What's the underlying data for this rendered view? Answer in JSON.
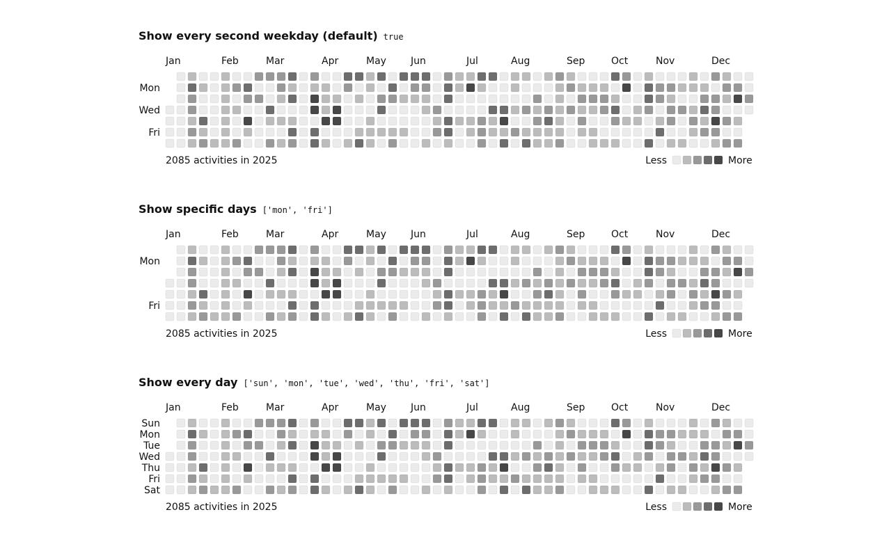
{
  "calendars": [
    {
      "title": "Show every second weekday (default)",
      "code": "true",
      "weekday_labels": [
        "",
        "Mon",
        "",
        "Wed",
        "",
        "Fri",
        ""
      ]
    },
    {
      "title": "Show specific days",
      "code": "['mon', 'fri']",
      "weekday_labels": [
        "",
        "Mon",
        "",
        "",
        "",
        "Fri",
        ""
      ]
    },
    {
      "title": "Show every day",
      "code": "['sun', 'mon', 'tue', 'wed', 'thu', 'fri', 'sat']",
      "weekday_labels": [
        "Sun",
        "Mon",
        "Tue",
        "Wed",
        "Thu",
        "Fri",
        "Sat"
      ]
    }
  ],
  "months": [
    "Jan",
    "Feb",
    "Mar",
    "Apr",
    "May",
    "Jun",
    "Jul",
    "Aug",
    "Sep",
    "Oct",
    "Nov",
    "Dec"
  ],
  "summary": "2085 activities in 2025",
  "legend": {
    "less": "Less",
    "more": "More"
  },
  "level_colors": [
    "#ebebeb",
    "#bcbcbc",
    "#999999",
    "#6d6d6d",
    "#474747"
  ],
  "activity_levels": [
    [
      0,
      0,
      1,
      0,
      0,
      1,
      0,
      0,
      2,
      2,
      2,
      3,
      0,
      2,
      0,
      0,
      3,
      3,
      1,
      3,
      0,
      3,
      3,
      3,
      0,
      2,
      1,
      1,
      3,
      3,
      0,
      1,
      1,
      0,
      1,
      2,
      1,
      0,
      0,
      0,
      3,
      2,
      0,
      1,
      0,
      0,
      0,
      1,
      0,
      2,
      1
    ],
    [
      0,
      0,
      3,
      1,
      0,
      1,
      2,
      3,
      0,
      0,
      2,
      1,
      0,
      1,
      1,
      0,
      2,
      0,
      1,
      0,
      3,
      0,
      2,
      2,
      0,
      3,
      1,
      4,
      1,
      0,
      0,
      1,
      0,
      0,
      0,
      1,
      2,
      1,
      1,
      1,
      0,
      4,
      0,
      3,
      2,
      2,
      1,
      1,
      1,
      0,
      2,
      2
    ],
    [
      0,
      0,
      2,
      0,
      0,
      1,
      0,
      2,
      2,
      0,
      1,
      3,
      0,
      4,
      1,
      1,
      0,
      1,
      0,
      2,
      2,
      1,
      1,
      1,
      0,
      3,
      0,
      0,
      0,
      0,
      0,
      0,
      0,
      2,
      0,
      1,
      0,
      2,
      2,
      2,
      1,
      0,
      0,
      3,
      2,
      1,
      0,
      0,
      2,
      2,
      1,
      4,
      2
    ],
    [
      0,
      0,
      2,
      0,
      0,
      1,
      1,
      0,
      0,
      3,
      0,
      0,
      0,
      4,
      1,
      4,
      0,
      0,
      0,
      3,
      0,
      0,
      0,
      1,
      2,
      0,
      0,
      0,
      0,
      3,
      3,
      1,
      2,
      1,
      2,
      1,
      2,
      1,
      1,
      2,
      3,
      0,
      1,
      2,
      0,
      2,
      2,
      1,
      3,
      2,
      0,
      0,
      0
    ],
    [
      0,
      0,
      1,
      3,
      0,
      1,
      0,
      4,
      0,
      1,
      1,
      1,
      0,
      0,
      4,
      4,
      0,
      0,
      1,
      0,
      0,
      0,
      0,
      0,
      1,
      3,
      1,
      1,
      2,
      1,
      4,
      0,
      0,
      2,
      3,
      1,
      0,
      2,
      0,
      0,
      2,
      1,
      1,
      0,
      1,
      2,
      0,
      2,
      1,
      4,
      2,
      1,
      1
    ],
    [
      0,
      0,
      2,
      1,
      0,
      1,
      0,
      1,
      0,
      0,
      0,
      3,
      0,
      3,
      0,
      0,
      0,
      1,
      1,
      1,
      1,
      1,
      0,
      0,
      2,
      3,
      0,
      1,
      2,
      1,
      1,
      2,
      1,
      1,
      1,
      1,
      0,
      1,
      1,
      0,
      0,
      0,
      0,
      0,
      3,
      0,
      0,
      1,
      2,
      2,
      0,
      0,
      1
    ],
    [
      0,
      0,
      1,
      2,
      1,
      1,
      2,
      0,
      0,
      2,
      1,
      2,
      0,
      3,
      1,
      0,
      1,
      3,
      1,
      0,
      2,
      0,
      0,
      1,
      0,
      1,
      0,
      0,
      2,
      0,
      3,
      0,
      3,
      1,
      1,
      2,
      0,
      0,
      1,
      1,
      1,
      0,
      0,
      3,
      0,
      1,
      1,
      0,
      0,
      1,
      2,
      2,
      0
    ]
  ]
}
